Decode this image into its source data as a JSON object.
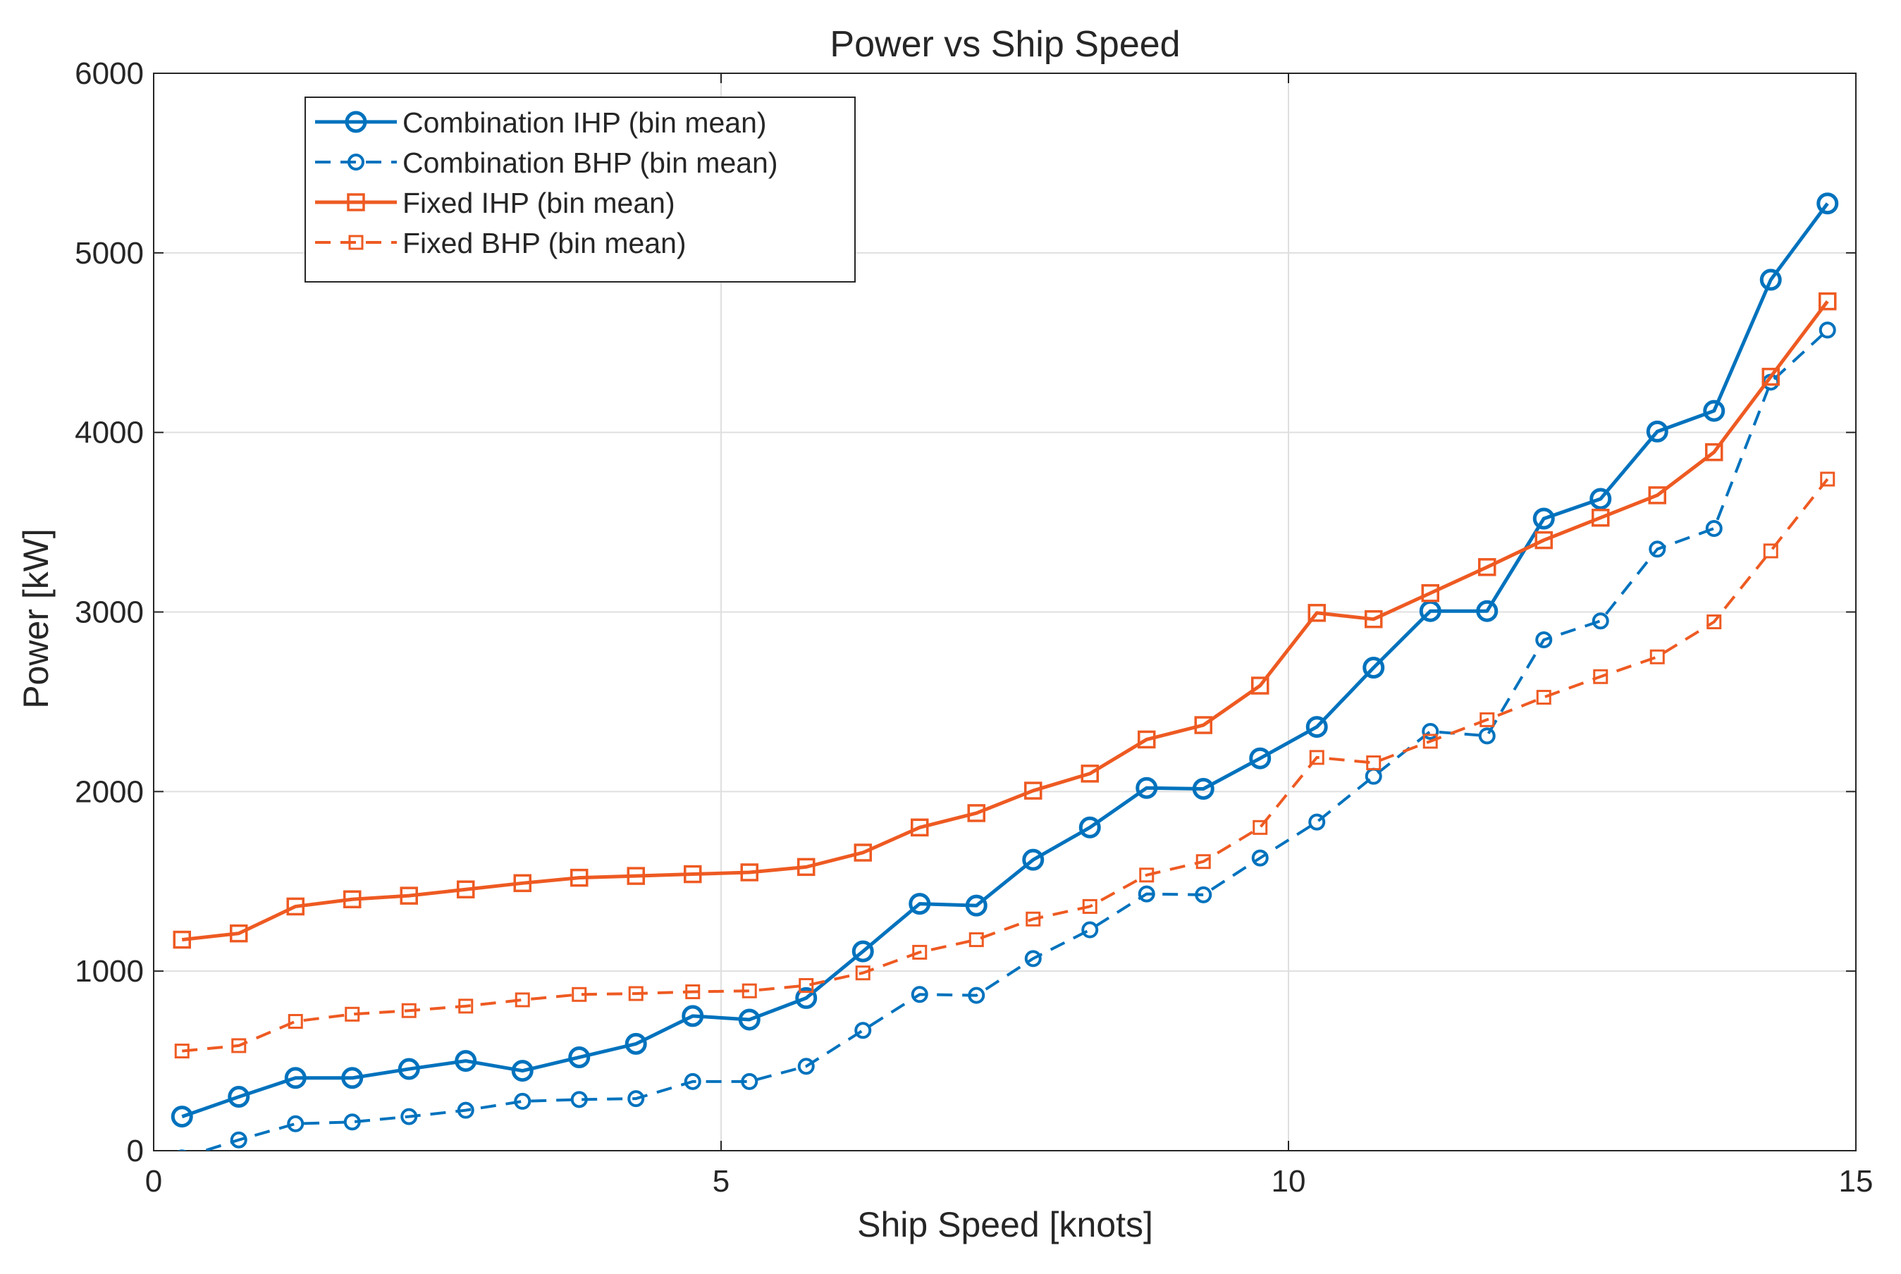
{
  "chart_data": {
    "type": "line",
    "title": "Power vs Ship Speed",
    "xlabel": "Ship Speed [knots]",
    "ylabel": "Power [kW]",
    "xlim": [
      0,
      15
    ],
    "ylim": [
      0,
      6000
    ],
    "xticks": [
      0,
      5,
      10,
      15
    ],
    "yticks": [
      0,
      1000,
      2000,
      3000,
      4000,
      5000,
      6000
    ],
    "xtick_labels": [
      "0",
      "5",
      "10",
      "15"
    ],
    "ytick_labels": [
      "0",
      "1000",
      "2000",
      "3000",
      "4000",
      "5000",
      "6000"
    ],
    "grid": true,
    "legend_position": "top-left",
    "x": [
      0.25,
      0.75,
      1.25,
      1.75,
      2.25,
      2.75,
      3.25,
      3.75,
      4.25,
      4.75,
      5.25,
      5.75,
      6.25,
      6.75,
      7.25,
      7.75,
      8.25,
      8.75,
      9.25,
      9.75,
      10.25,
      10.75,
      11.25,
      11.75,
      12.25,
      12.75,
      13.25,
      13.75,
      14.25,
      14.75
    ],
    "series": [
      {
        "name": "Combination IHP (bin mean)",
        "color": "#0072BD",
        "line_style": "solid",
        "marker": "circle",
        "values": [
          190,
          300,
          405,
          405,
          455,
          500,
          445,
          520,
          595,
          750,
          730,
          850,
          1110,
          1375,
          1365,
          1620,
          1800,
          2020,
          2015,
          2185,
          2360,
          2690,
          3005,
          3005,
          3520,
          3630,
          4005,
          4120,
          4850,
          5275
        ]
      },
      {
        "name": "Combination BHP (bin mean)",
        "color": "#0072BD",
        "line_style": "dashed",
        "marker": "circle-small",
        "values": [
          -40,
          60,
          150,
          160,
          190,
          225,
          275,
          285,
          290,
          385,
          385,
          470,
          670,
          870,
          865,
          1070,
          1230,
          1430,
          1425,
          1630,
          1830,
          2085,
          2335,
          2310,
          2845,
          2950,
          3350,
          3465,
          4280,
          4570
        ]
      },
      {
        "name": "Fixed IHP (bin mean)",
        "color": "#EE5A22",
        "line_style": "solid",
        "marker": "square",
        "values": [
          1175,
          1210,
          1360,
          1400,
          1420,
          1455,
          1490,
          1520,
          1530,
          1540,
          1550,
          1580,
          1660,
          1800,
          1880,
          2005,
          2100,
          2290,
          2370,
          2590,
          2995,
          2960,
          3105,
          3250,
          3400,
          3525,
          3650,
          3890,
          4310,
          4730
        ]
      },
      {
        "name": "Fixed BHP (bin mean)",
        "color": "#EE5A22",
        "line_style": "dashed",
        "marker": "square-small",
        "values": [
          555,
          585,
          720,
          760,
          780,
          805,
          840,
          870,
          875,
          885,
          890,
          920,
          990,
          1105,
          1175,
          1290,
          1360,
          1535,
          1610,
          1800,
          2190,
          2160,
          2280,
          2400,
          2525,
          2640,
          2750,
          2945,
          3340,
          3740
        ]
      }
    ]
  }
}
